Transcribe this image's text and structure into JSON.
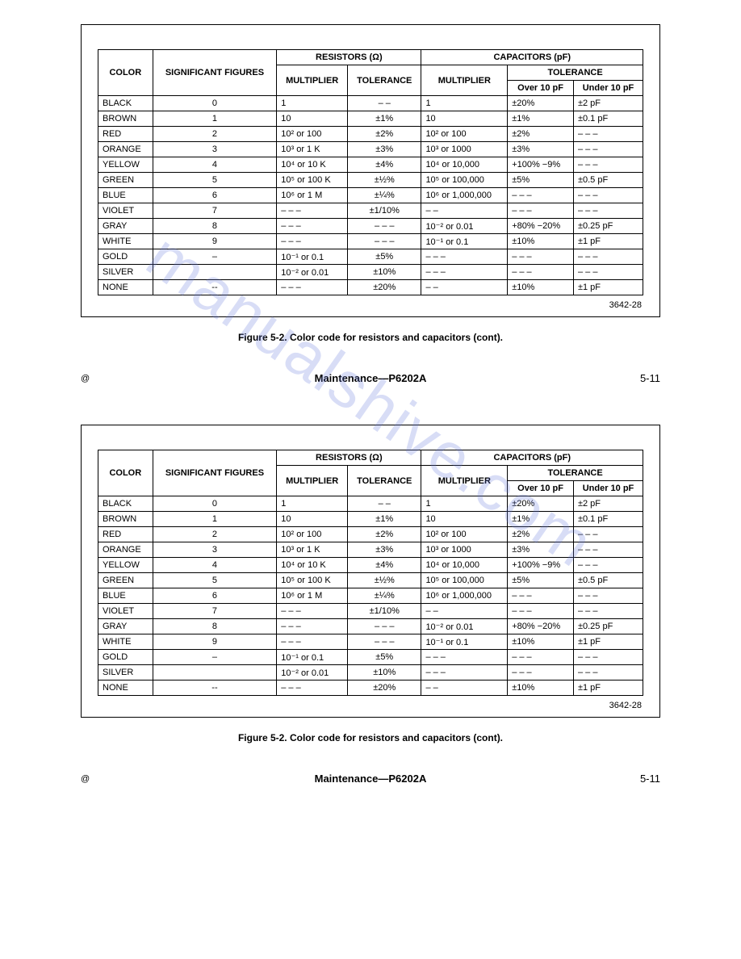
{
  "watermark_text": "manualshive.com",
  "watermark_color": "rgba(100,120,220,0.25)",
  "table": {
    "headers": {
      "color": "COLOR",
      "sig_fig": "SIGNIFICANT FIGURES",
      "resistors": "RESISTORS (Ω)",
      "capacitors": "CAPACITORS (pF)",
      "multiplier": "MULTIPLIER",
      "tolerance": "TOLERANCE",
      "over10": "Over 10 pF",
      "under10": "Under 10 pF"
    },
    "rows": [
      {
        "color": "BLACK",
        "sig": "0",
        "r_mult": "1",
        "r_tol": "– –",
        "c_mult": "1",
        "c_over": "±20%",
        "c_under": "±2 pF"
      },
      {
        "color": "BROWN",
        "sig": "1",
        "r_mult": "10",
        "r_tol": "±1%",
        "c_mult": "10",
        "c_over": "±1%",
        "c_under": "±0.1 pF"
      },
      {
        "color": "RED",
        "sig": "2",
        "r_mult": "10²  or 100",
        "r_tol": "±2%",
        "c_mult": "10²  or 100",
        "c_over": "±2%",
        "c_under": "– – –"
      },
      {
        "color": "ORANGE",
        "sig": "3",
        "r_mult": "10³  or 1 K",
        "r_tol": "±3%",
        "c_mult": "10³  or 1000",
        "c_over": "±3%",
        "c_under": "– – –"
      },
      {
        "color": "YELLOW",
        "sig": "4",
        "r_mult": "10⁴  or 10 K",
        "r_tol": "±4%",
        "c_mult": "10⁴  or 10,000",
        "c_over": "+100% −9%",
        "c_under": "– – –"
      },
      {
        "color": "GREEN",
        "sig": "5",
        "r_mult": "10⁵  or 100 K",
        "r_tol": "±½%",
        "c_mult": "10⁵  or 100,000",
        "c_over": "±5%",
        "c_under": "±0.5 pF"
      },
      {
        "color": "BLUE",
        "sig": "6",
        "r_mult": "10⁶  or 1 M",
        "r_tol": "±¼%",
        "c_mult": "10⁶  or 1,000,000",
        "c_over": "– – –",
        "c_under": "– – –"
      },
      {
        "color": "VIOLET",
        "sig": "7",
        "r_mult": "– – –",
        "r_tol": "±1/10%",
        "c_mult": "– –",
        "c_over": "– – –",
        "c_under": "– – –"
      },
      {
        "color": "GRAY",
        "sig": "8",
        "r_mult": "– – –",
        "r_tol": "– – –",
        "c_mult": "10⁻²  or 0.01",
        "c_over": "+80% −20%",
        "c_under": "±0.25 pF"
      },
      {
        "color": "WHITE",
        "sig": "9",
        "r_mult": "– – –",
        "r_tol": "– – –",
        "c_mult": "10⁻¹  or 0.1",
        "c_over": "±10%",
        "c_under": "±1 pF"
      },
      {
        "color": "GOLD",
        "sig": "–",
        "r_mult": "10⁻¹  or 0.1",
        "r_tol": "±5%",
        "c_mult": "– – –",
        "c_over": "– – –",
        "c_under": "– – –"
      },
      {
        "color": "SILVER",
        "sig": "",
        "r_mult": "10⁻²  or 0.01",
        "r_tol": "±10%",
        "c_mult": "– – –",
        "c_over": "– – –",
        "c_under": "– – –"
      },
      {
        "color": "NONE",
        "sig": "--",
        "r_mult": "– – –",
        "r_tol": "±20%",
        "c_mult": "– –",
        "c_over": "±10%",
        "c_under": "±1 pF"
      }
    ],
    "figure_ref": "3642-28"
  },
  "caption": "Figure 5-2. Color code for resistors and capacitors (cont).",
  "footer": {
    "copyright": "@",
    "title": "Maintenance—P6202A",
    "page": "5-11"
  }
}
